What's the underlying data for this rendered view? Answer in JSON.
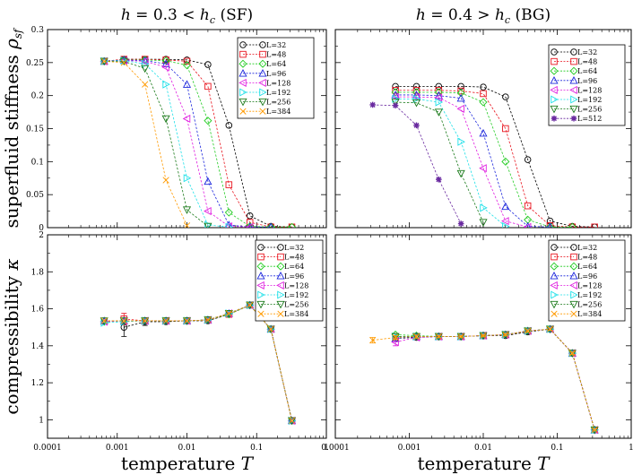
{
  "colors": {
    "L=32": "#000000",
    "L=48": "#e8141e",
    "L=64": "#22cc22",
    "L=96": "#1e28dc",
    "L=128": "#e020e0",
    "L=192": "#1ee0e8",
    "L=256": "#1a7a1a",
    "L=384": "#ff9a00",
    "L=512": "#6a2aa0"
  },
  "markers": {
    "L=32": "circle",
    "L=48": "square",
    "L=64": "diamond",
    "L=96": "triangle-up",
    "L=128": "triangle-left",
    "L=192": "triangle-right",
    "L=256": "triangle-down",
    "L=384": "x",
    "L=512": "star"
  },
  "chart_data": [
    {
      "type": "line",
      "title": "h = 0.3 < h_c (SF)",
      "title_parts": [
        "h",
        " = 0.3 < ",
        "h",
        "c",
        " (SF)"
      ],
      "xlabel": "",
      "ylabel_parts": [
        "superfluid stiffness ",
        "ρ",
        "sf"
      ],
      "xscale": "log",
      "xlim": [
        0.0001,
        1
      ],
      "ylim": [
        0,
        0.3
      ],
      "xticks": [
        0.0001,
        0.001,
        0.01,
        0.1,
        1
      ],
      "xtick_labels": [
        "",
        "",
        "",
        "",
        ""
      ],
      "yticks": [
        0,
        0.05,
        0.1,
        0.15,
        0.2,
        0.25,
        0.3
      ],
      "ytick_labels": [
        "0",
        "0.05",
        "0.1",
        "0.15",
        "0.2",
        "0.25",
        "0.3"
      ],
      "legend_position": "top-right",
      "series": [
        {
          "name": "L=32",
          "x": [
            0.00065,
            0.00125,
            0.0025,
            0.005,
            0.01,
            0.02,
            0.04,
            0.08,
            0.16,
            0.32
          ],
          "values": [
            0.252,
            0.255,
            0.255,
            0.255,
            0.254,
            0.247,
            0.155,
            0.018,
            0.002,
            0.001
          ]
        },
        {
          "name": "L=48",
          "x": [
            0.00065,
            0.00125,
            0.0025,
            0.005,
            0.01,
            0.02,
            0.04,
            0.08,
            0.16,
            0.32
          ],
          "values": [
            0.252,
            0.255,
            0.255,
            0.254,
            0.252,
            0.214,
            0.065,
            0.008,
            0.001,
            0.001
          ]
        },
        {
          "name": "L=64",
          "x": [
            0.00065,
            0.00125,
            0.0025,
            0.005,
            0.01,
            0.02,
            0.04,
            0.08,
            0.16,
            0.32
          ],
          "values": [
            0.252,
            0.254,
            0.254,
            0.253,
            0.246,
            0.162,
            0.023,
            0.002,
            0.001,
            0.001
          ]
        },
        {
          "name": "L=96",
          "x": [
            0.00065,
            0.00125,
            0.0025,
            0.005,
            0.01,
            0.02,
            0.04,
            0.08,
            0.16
          ],
          "values": [
            0.252,
            0.254,
            0.253,
            0.248,
            0.217,
            0.07,
            0.004,
            0.001,
            0.001
          ]
        },
        {
          "name": "L=128",
          "x": [
            0.00065,
            0.00125,
            0.0025,
            0.005,
            0.01,
            0.02,
            0.04,
            0.08
          ],
          "values": [
            0.252,
            0.253,
            0.252,
            0.243,
            0.165,
            0.025,
            0.002,
            0.001
          ]
        },
        {
          "name": "L=192",
          "x": [
            0.00065,
            0.00125,
            0.0025,
            0.005,
            0.01,
            0.02,
            0.04
          ],
          "values": [
            0.252,
            0.253,
            0.248,
            0.217,
            0.075,
            0.004,
            0.001
          ]
        },
        {
          "name": "L=256",
          "x": [
            0.00065,
            0.00125,
            0.0025,
            0.005,
            0.01,
            0.02
          ],
          "values": [
            0.252,
            0.252,
            0.241,
            0.165,
            0.027,
            0.002
          ]
        },
        {
          "name": "L=384",
          "x": [
            0.00065,
            0.00125,
            0.0025,
            0.005,
            0.01
          ],
          "values": [
            0.252,
            0.25,
            0.217,
            0.072,
            0.003
          ]
        }
      ]
    },
    {
      "type": "line",
      "title": "h = 0.4 > h_c (BG)",
      "title_parts": [
        "h",
        " = 0.4 > ",
        "h",
        "c",
        " (BG)"
      ],
      "xlabel": "",
      "ylabel": "",
      "xscale": "log",
      "xlim": [
        0.0001,
        1
      ],
      "ylim": [
        0,
        0.3
      ],
      "xticks": [
        0.0001,
        0.001,
        0.01,
        0.1,
        1
      ],
      "xtick_labels": [
        "",
        "",
        "",
        "",
        ""
      ],
      "yticks": [
        0,
        0.05,
        0.1,
        0.15,
        0.2,
        0.25,
        0.3
      ],
      "ytick_labels": [
        "",
        "",
        "",
        "",
        "",
        "",
        ""
      ],
      "legend_position": "top-right",
      "series": [
        {
          "name": "L=32",
          "x": [
            0.00065,
            0.00125,
            0.0025,
            0.005,
            0.01,
            0.02,
            0.04,
            0.08,
            0.16,
            0.32
          ],
          "values": [
            0.214,
            0.214,
            0.214,
            0.214,
            0.213,
            0.198,
            0.103,
            0.01,
            0.002,
            0.001
          ]
        },
        {
          "name": "L=48",
          "x": [
            0.00065,
            0.00125,
            0.0025,
            0.005,
            0.01,
            0.02,
            0.04,
            0.08,
            0.16,
            0.32
          ],
          "values": [
            0.208,
            0.208,
            0.208,
            0.207,
            0.203,
            0.15,
            0.033,
            0.003,
            0.001,
            0.001
          ]
        },
        {
          "name": "L=64",
          "x": [
            0.00065,
            0.00125,
            0.0025,
            0.005,
            0.01,
            0.02,
            0.04,
            0.08,
            0.16
          ],
          "values": [
            0.205,
            0.205,
            0.205,
            0.204,
            0.19,
            0.1,
            0.012,
            0.001,
            0.001
          ]
        },
        {
          "name": "L=96",
          "x": [
            0.00065,
            0.00125,
            0.0025,
            0.005,
            0.01,
            0.02,
            0.04,
            0.08
          ],
          "values": [
            0.201,
            0.201,
            0.2,
            0.196,
            0.143,
            0.032,
            0.002,
            0.001
          ]
        },
        {
          "name": "L=128",
          "x": [
            0.00065,
            0.00125,
            0.0025,
            0.005,
            0.01,
            0.02,
            0.04
          ],
          "values": [
            0.198,
            0.198,
            0.197,
            0.18,
            0.09,
            0.01,
            0.001
          ]
        },
        {
          "name": "L=192",
          "x": [
            0.00065,
            0.00125,
            0.0025,
            0.005,
            0.01,
            0.02
          ],
          "values": [
            0.195,
            0.195,
            0.19,
            0.13,
            0.03,
            0.002
          ]
        },
        {
          "name": "L=256",
          "x": [
            0.00065,
            0.00125,
            0.0025,
            0.005,
            0.01
          ],
          "values": [
            0.19,
            0.189,
            0.175,
            0.082,
            0.008
          ]
        },
        {
          "name": "L=512",
          "x": [
            0.00032,
            0.00065,
            0.00125,
            0.0025,
            0.005
          ],
          "values": [
            0.186,
            0.185,
            0.155,
            0.073,
            0.006
          ]
        }
      ]
    },
    {
      "type": "line",
      "xlabel_parts": [
        "temperature ",
        "T"
      ],
      "ylabel_parts": [
        "compressibility ",
        "κ"
      ],
      "xscale": "log",
      "xlim": [
        0.0001,
        1
      ],
      "ylim": [
        0.9,
        2
      ],
      "xticks": [
        0.0001,
        0.001,
        0.01,
        0.1,
        1
      ],
      "xtick_labels": [
        "0.0001",
        "0.001",
        "0.01",
        "0.1",
        "1"
      ],
      "yticks": [
        1,
        1.2,
        1.4,
        1.6,
        1.8,
        2
      ],
      "ytick_labels": [
        "1",
        "1.2",
        "1.4",
        "1.6",
        "1.8",
        "2"
      ],
      "legend_position": "top-right",
      "series": [
        {
          "name": "L=32",
          "x": [
            0.00125,
            0.0025,
            0.005,
            0.01,
            0.02,
            0.04,
            0.08,
            0.16,
            0.32
          ],
          "values": [
            1.5,
            1.53,
            1.53,
            1.535,
            1.535,
            1.57,
            1.62,
            1.49,
            0.995
          ],
          "errors": [
            0.05,
            0.02,
            0.01,
            0.008,
            0.008,
            0.008,
            0.008,
            0.006,
            0.005
          ]
        },
        {
          "name": "L=48",
          "x": [
            0.00125,
            0.0025,
            0.005,
            0.01,
            0.02,
            0.04,
            0.08,
            0.16,
            0.32
          ],
          "values": [
            1.545,
            1.535,
            1.535,
            1.535,
            1.54,
            1.57,
            1.62,
            1.49,
            0.995
          ],
          "errors": [
            0.03,
            0.015,
            0.01,
            0.008,
            0.008,
            0.008,
            0.008,
            0.006,
            0.005
          ]
        },
        {
          "name": "L=64",
          "x": [
            0.00065,
            0.00125,
            0.0025,
            0.005,
            0.01,
            0.02,
            0.04,
            0.08,
            0.16,
            0.32
          ],
          "values": [
            1.53,
            1.535,
            1.535,
            1.535,
            1.535,
            1.54,
            1.57,
            1.62,
            1.49,
            0.995
          ]
        },
        {
          "name": "L=96",
          "x": [
            0.00065,
            0.00125,
            0.0025,
            0.005,
            0.01,
            0.02,
            0.04,
            0.08,
            0.16,
            0.32
          ],
          "values": [
            1.535,
            1.535,
            1.535,
            1.535,
            1.535,
            1.54,
            1.575,
            1.62,
            1.49,
            0.995
          ]
        },
        {
          "name": "L=128",
          "x": [
            0.00065,
            0.00125,
            0.0025,
            0.005,
            0.01,
            0.02,
            0.04,
            0.08,
            0.16,
            0.32
          ],
          "values": [
            1.53,
            1.535,
            1.535,
            1.535,
            1.535,
            1.54,
            1.575,
            1.62,
            1.49,
            0.995
          ]
        },
        {
          "name": "L=192",
          "x": [
            0.00065,
            0.00125,
            0.0025,
            0.005,
            0.01,
            0.02,
            0.04,
            0.08,
            0.16,
            0.32
          ],
          "values": [
            1.525,
            1.53,
            1.535,
            1.535,
            1.535,
            1.54,
            1.575,
            1.62,
            1.49,
            0.995
          ]
        },
        {
          "name": "L=256",
          "x": [
            0.00065,
            0.00125,
            0.0025,
            0.005,
            0.01,
            0.02,
            0.04,
            0.08,
            0.16,
            0.32
          ],
          "values": [
            1.535,
            1.535,
            1.535,
            1.535,
            1.535,
            1.54,
            1.575,
            1.62,
            1.49,
            0.995
          ]
        },
        {
          "name": "L=384",
          "x": [
            0.00065,
            0.00125,
            0.0025,
            0.005,
            0.01,
            0.02,
            0.04,
            0.08,
            0.16,
            0.32
          ],
          "values": [
            1.535,
            1.535,
            1.535,
            1.535,
            1.535,
            1.54,
            1.575,
            1.62,
            1.49,
            0.995
          ]
        }
      ]
    },
    {
      "type": "line",
      "xlabel_parts": [
        "temperature ",
        "T"
      ],
      "ylabel": "",
      "xscale": "log",
      "xlim": [
        0.0001,
        1
      ],
      "ylim": [
        0.9,
        2
      ],
      "xticks": [
        0.0001,
        0.001,
        0.01,
        0.1,
        1
      ],
      "xtick_labels": [
        "0.0001",
        "0.001",
        "0.01",
        "0.1",
        "1"
      ],
      "yticks": [
        1,
        1.2,
        1.4,
        1.6,
        1.8,
        2
      ],
      "ytick_labels": [
        "",
        "",
        "",
        "",
        "",
        ""
      ],
      "legend_position": "top-right",
      "series": [
        {
          "name": "L=32",
          "x": [
            0.00065,
            0.00125,
            0.0025,
            0.005,
            0.01,
            0.02,
            0.04,
            0.08,
            0.16,
            0.32
          ],
          "values": [
            1.44,
            1.445,
            1.45,
            1.45,
            1.455,
            1.455,
            1.475,
            1.49,
            1.36,
            0.945
          ]
        },
        {
          "name": "L=48",
          "x": [
            0.00065,
            0.00125,
            0.0025,
            0.005,
            0.01,
            0.02,
            0.04,
            0.08,
            0.16,
            0.32
          ],
          "values": [
            1.45,
            1.45,
            1.45,
            1.45,
            1.455,
            1.46,
            1.48,
            1.49,
            1.36,
            0.945
          ]
        },
        {
          "name": "L=64",
          "x": [
            0.00065,
            0.00125,
            0.0025,
            0.005,
            0.01,
            0.02,
            0.04,
            0.08,
            0.16,
            0.32
          ],
          "values": [
            1.46,
            1.455,
            1.45,
            1.45,
            1.455,
            1.46,
            1.48,
            1.49,
            1.36,
            0.945
          ]
        },
        {
          "name": "L=96",
          "x": [
            0.00065,
            0.00125,
            0.0025,
            0.005,
            0.01,
            0.02,
            0.04,
            0.08,
            0.16,
            0.32
          ],
          "values": [
            1.44,
            1.45,
            1.45,
            1.45,
            1.455,
            1.46,
            1.48,
            1.49,
            1.36,
            0.945
          ]
        },
        {
          "name": "L=128",
          "x": [
            0.00065,
            0.00125,
            0.0025,
            0.005,
            0.01,
            0.02,
            0.04,
            0.08,
            0.16,
            0.32
          ],
          "values": [
            1.42,
            1.445,
            1.45,
            1.45,
            1.455,
            1.46,
            1.48,
            1.49,
            1.36,
            0.945
          ],
          "errors": [
            0.02,
            0.01,
            0.008,
            0.006,
            0.006,
            0.006,
            0.006,
            0.006,
            0.006,
            0.005
          ]
        },
        {
          "name": "L=192",
          "x": [
            0.00065,
            0.00125,
            0.0025,
            0.005,
            0.01,
            0.02,
            0.04,
            0.08,
            0.16,
            0.32
          ],
          "values": [
            1.45,
            1.45,
            1.45,
            1.45,
            1.455,
            1.46,
            1.48,
            1.49,
            1.36,
            0.945
          ]
        },
        {
          "name": "L=256",
          "x": [
            0.00065,
            0.00125,
            0.0025,
            0.005,
            0.01,
            0.02,
            0.04,
            0.08,
            0.16,
            0.32
          ],
          "values": [
            1.45,
            1.45,
            1.45,
            1.45,
            1.455,
            1.46,
            1.48,
            1.49,
            1.36,
            0.945
          ]
        },
        {
          "name": "L=384",
          "x": [
            0.00032,
            0.00065,
            0.00125,
            0.0025,
            0.005,
            0.01,
            0.02,
            0.04,
            0.08,
            0.16,
            0.32
          ],
          "values": [
            1.43,
            1.445,
            1.45,
            1.45,
            1.45,
            1.455,
            1.46,
            1.48,
            1.49,
            1.36,
            0.945
          ],
          "errors": [
            0.015,
            0.01,
            0.008,
            0.006,
            0.006,
            0.006,
            0.006,
            0.006,
            0.006,
            0.006,
            0.005
          ]
        }
      ]
    }
  ]
}
